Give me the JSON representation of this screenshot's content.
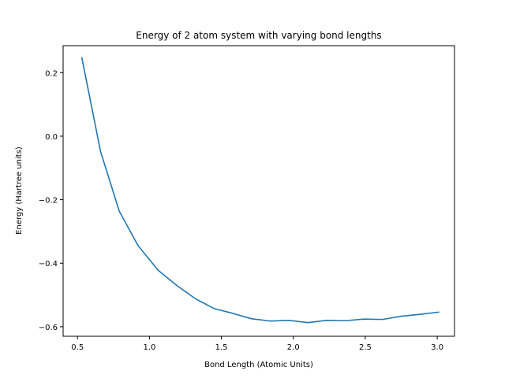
{
  "chart_data": {
    "type": "line",
    "title": "Energy of 2 atom system with varying bond lengths",
    "xlabel": "Bond Length (Atomic Units)",
    "ylabel": "Energy (Hartree units)",
    "xlim": [
      0.4,
      3.12
    ],
    "ylim": [
      -0.63,
      0.285
    ],
    "xticks": [
      0.5,
      1.0,
      1.5,
      2.0,
      2.5,
      3.0
    ],
    "xtick_labels": [
      "0.5",
      "1.0",
      "1.5",
      "2.0",
      "2.5",
      "3.0"
    ],
    "yticks": [
      -0.6,
      -0.4,
      -0.2,
      0.0,
      0.2
    ],
    "ytick_labels": [
      "−0.6",
      "−0.4",
      "−0.2",
      "0.0",
      "0.2"
    ],
    "grid": false,
    "series": [
      {
        "color": "#1f77b4",
        "x": [
          0.53,
          0.66,
          0.79,
          0.92,
          1.06,
          1.19,
          1.32,
          1.45,
          1.58,
          1.71,
          1.84,
          1.97,
          2.1,
          2.23,
          2.36,
          2.49,
          2.62,
          2.75,
          2.88,
          3.01
        ],
        "y": [
          0.247,
          -0.048,
          -0.236,
          -0.344,
          -0.422,
          -0.47,
          -0.512,
          -0.543,
          -0.558,
          -0.575,
          -0.582,
          -0.58,
          -0.587,
          -0.58,
          -0.581,
          -0.576,
          -0.577,
          -0.567,
          -0.561,
          -0.554
        ]
      }
    ]
  }
}
